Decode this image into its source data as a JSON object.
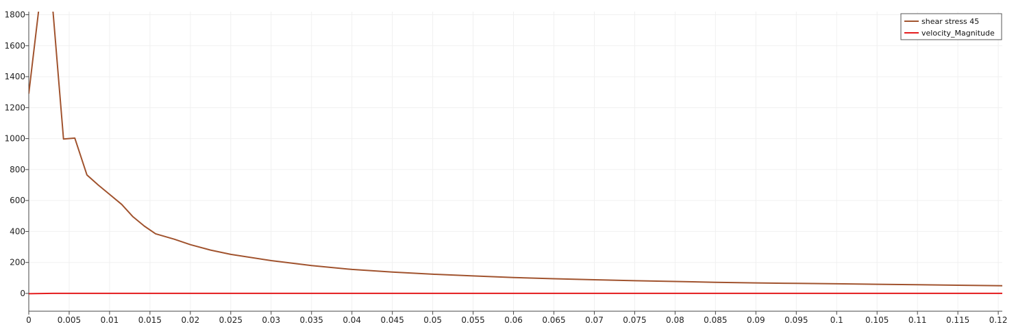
{
  "chart_data": {
    "type": "line",
    "xlim": [
      0,
      0.1205
    ],
    "ylim": [
      -115,
      1820
    ],
    "x_ticks": [
      0,
      0.005,
      0.01,
      0.015,
      0.02,
      0.025,
      0.03,
      0.035,
      0.04,
      0.045,
      0.05,
      0.055,
      0.06,
      0.065,
      0.07,
      0.075,
      0.08,
      0.085,
      0.09,
      0.095,
      0.1,
      0.105,
      0.11,
      0.115,
      0.12
    ],
    "x_tick_labels": [
      "0",
      "0.005",
      "0.01",
      "0.015",
      "0.02",
      "0.025",
      "0.03",
      "0.035",
      "0.04",
      "0.045",
      "0.05",
      "0.055",
      "0.06",
      "0.065",
      "0.07",
      "0.075",
      "0.08",
      "0.085",
      "0.09",
      "0.095",
      "0.1",
      "0.105",
      "0.11",
      "0.115",
      "0.12"
    ],
    "y_ticks": [
      0,
      200,
      400,
      600,
      800,
      1000,
      1200,
      1400,
      1600,
      1800
    ],
    "y_tick_labels": [
      "0",
      "200",
      "400",
      "600",
      "800",
      "1000",
      "1200",
      "1400",
      "1600",
      "1800"
    ],
    "grid": true,
    "legend_position": "top-right",
    "series": [
      {
        "name": "shear stress 45",
        "color": "#a0522d",
        "x": [
          0,
          0.0012,
          0.0015,
          0.003,
          0.0043,
          0.0057,
          0.0072,
          0.0086,
          0.01,
          0.0115,
          0.0129,
          0.0143,
          0.0157,
          0.018,
          0.02,
          0.0225,
          0.025,
          0.03,
          0.035,
          0.04,
          0.045,
          0.05,
          0.055,
          0.06,
          0.065,
          0.07,
          0.075,
          0.08,
          0.085,
          0.09,
          0.095,
          0.1,
          0.105,
          0.11,
          0.115,
          0.1205
        ],
        "y": [
          1290,
          1820,
          1950,
          1820,
          997,
          1003,
          765,
          700,
          640,
          575,
          495,
          435,
          385,
          350,
          315,
          280,
          252,
          212,
          180,
          155,
          138,
          124,
          113,
          103,
          95,
          88,
          82,
          77,
          72,
          68,
          65,
          62,
          59,
          56,
          53,
          50
        ]
      },
      {
        "name": "velocity_Magnitude",
        "color": "#e41a1c",
        "x": [
          0,
          0.003,
          0.01,
          0.03,
          0.06,
          0.09,
          0.1205
        ],
        "y": [
          -2,
          0.5,
          0.5,
          0.5,
          0.5,
          0.5,
          0.5
        ]
      }
    ]
  }
}
